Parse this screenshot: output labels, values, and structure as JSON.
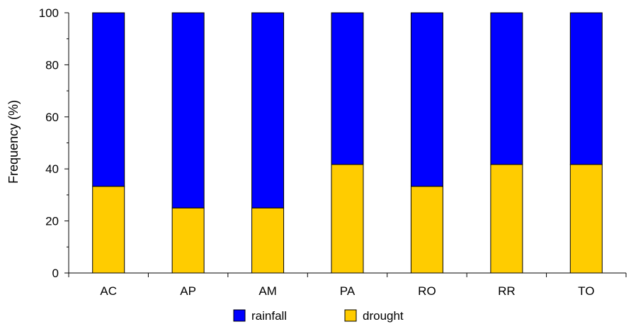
{
  "chart_data": {
    "type": "bar",
    "stacked": true,
    "title": "",
    "xlabel": "",
    "ylabel": "Frequency (%)",
    "ylim": [
      0,
      100
    ],
    "yticks": [
      0,
      20,
      40,
      60,
      80,
      100
    ],
    "grid": false,
    "legend_position": "bottom",
    "categories": [
      "AC",
      "AP",
      "AM",
      "PA",
      "RO",
      "RR",
      "TO"
    ],
    "series": [
      {
        "name": "drought",
        "color": "#FFCC00",
        "values": [
          33.3,
          25,
          25,
          41.7,
          33.3,
          41.7,
          41.7
        ]
      },
      {
        "name": "rainfall",
        "color": "#0000FF",
        "values": [
          66.7,
          75,
          75,
          58.3,
          66.7,
          58.3,
          58.3
        ]
      }
    ],
    "legend_order": [
      "rainfall",
      "drought"
    ]
  }
}
